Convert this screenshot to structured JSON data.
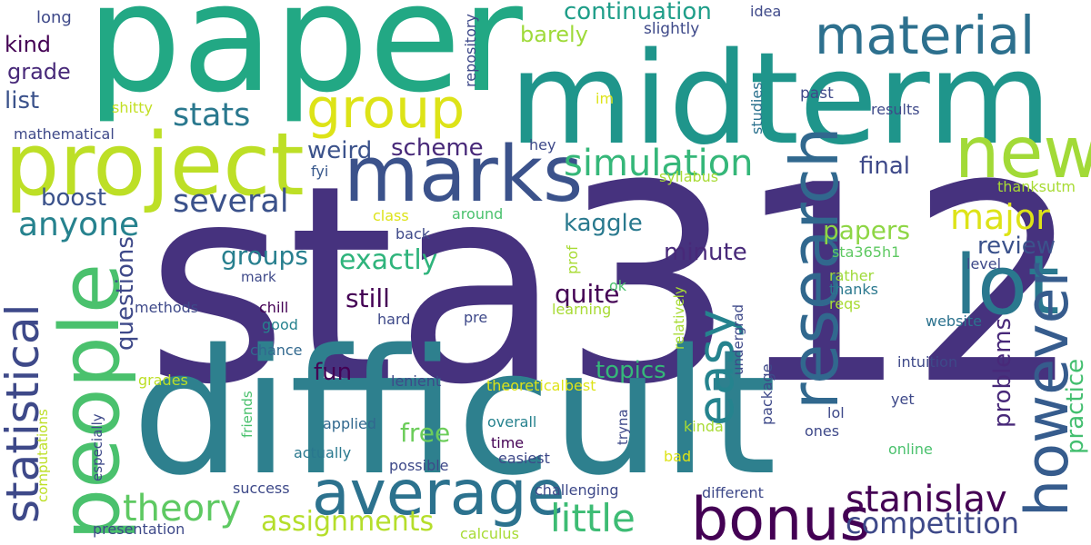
{
  "words": [
    {
      "text": "sta312",
      "color": "#46327e"
    },
    {
      "text": "difficult",
      "color": "#2e808e"
    },
    {
      "text": "paper",
      "color": "#22a884"
    },
    {
      "text": "midterm",
      "color": "#1f958b"
    },
    {
      "text": "project",
      "color": "#bddf26"
    },
    {
      "text": "people",
      "color": "#4ac16d"
    },
    {
      "text": "marks",
      "color": "#3b528b"
    },
    {
      "text": "lot",
      "color": "#2a788e"
    },
    {
      "text": "new",
      "color": "#a2da37"
    },
    {
      "text": "research",
      "color": "#31688e"
    },
    {
      "text": "average",
      "color": "#2c728e"
    },
    {
      "text": "bonus",
      "color": "#440154"
    },
    {
      "text": "however",
      "color": "#365c8d"
    },
    {
      "text": "material",
      "color": "#2d708e"
    },
    {
      "text": "group",
      "color": "#dde318"
    },
    {
      "text": "easy",
      "color": "#25838e"
    },
    {
      "text": "statistical",
      "color": "#3e4989"
    },
    {
      "text": "simulation",
      "color": "#35b779"
    },
    {
      "text": "stanislav",
      "color": "#440154"
    },
    {
      "text": "little",
      "color": "#3dbc74"
    },
    {
      "text": "theory",
      "color": "#5ec962"
    },
    {
      "text": "major",
      "color": "#dde318"
    },
    {
      "text": "several",
      "color": "#3b528b"
    },
    {
      "text": "anyone",
      "color": "#26828e"
    },
    {
      "text": "stats",
      "color": "#2a788e"
    },
    {
      "text": "competition",
      "color": "#3e4989"
    },
    {
      "text": "assignments",
      "color": "#b5de2b"
    },
    {
      "text": "exactly",
      "color": "#2fb47c"
    },
    {
      "text": "continuation",
      "color": "#1f9e89"
    },
    {
      "text": "papers",
      "color": "#8ed645"
    },
    {
      "text": "review",
      "color": "#3b528b"
    },
    {
      "text": "practice",
      "color": "#44bf70"
    },
    {
      "text": "problems",
      "color": "#482979"
    },
    {
      "text": "groups",
      "color": "#277f8e"
    },
    {
      "text": "free",
      "color": "#6ccd5a"
    },
    {
      "text": "quite",
      "color": "#440154"
    },
    {
      "text": "still",
      "color": "#440154"
    },
    {
      "text": "questions",
      "color": "#3e4989"
    },
    {
      "text": "minute",
      "color": "#482979"
    },
    {
      "text": "kaggle",
      "color": "#29798e"
    },
    {
      "text": "topics",
      "color": "#35b779"
    },
    {
      "text": "fun",
      "color": "#440154"
    },
    {
      "text": "scheme",
      "color": "#482979"
    },
    {
      "text": "weird",
      "color": "#3b528b"
    },
    {
      "text": "final",
      "color": "#3e4989"
    },
    {
      "text": "boost",
      "color": "#3b528b"
    },
    {
      "text": "kind",
      "color": "#440154"
    },
    {
      "text": "grade",
      "color": "#482979"
    },
    {
      "text": "list",
      "color": "#3b528b"
    },
    {
      "text": "barely",
      "color": "#9fda3a"
    },
    {
      "text": "long",
      "color": "#3e4989"
    },
    {
      "text": "mathematical",
      "color": "#3e4989"
    },
    {
      "text": "shitty",
      "color": "#c2df23"
    },
    {
      "text": "repository",
      "color": "#3e4989"
    },
    {
      "text": "im",
      "color": "#dde318"
    },
    {
      "text": "idea",
      "color": "#3e4989"
    },
    {
      "text": "slightly",
      "color": "#3e4989"
    },
    {
      "text": "studies",
      "color": "#2c728e"
    },
    {
      "text": "past",
      "color": "#3e4989"
    },
    {
      "text": "results",
      "color": "#3e4989"
    },
    {
      "text": "hey",
      "color": "#3e4989"
    },
    {
      "text": "fyi",
      "color": "#38588c"
    },
    {
      "text": "syllabus",
      "color": "#a8db34"
    },
    {
      "text": "thanksutm",
      "color": "#a8db34"
    },
    {
      "text": "class",
      "color": "#dde318"
    },
    {
      "text": "around",
      "color": "#4ac16d"
    },
    {
      "text": "back",
      "color": "#3e4989"
    },
    {
      "text": "sta365h1",
      "color": "#5ec962"
    },
    {
      "text": "prof",
      "color": "#a8db34"
    },
    {
      "text": "level",
      "color": "#3e4989"
    },
    {
      "text": "rather",
      "color": "#9fda3a"
    },
    {
      "text": "thanks",
      "color": "#2a788e"
    },
    {
      "text": "reqs",
      "color": "#a8db34"
    },
    {
      "text": "mark",
      "color": "#3e4989"
    },
    {
      "text": "chill",
      "color": "#440154"
    },
    {
      "text": "methods",
      "color": "#3e4989"
    },
    {
      "text": "good",
      "color": "#26828e"
    },
    {
      "text": "hard",
      "color": "#3e4989"
    },
    {
      "text": "pre",
      "color": "#3e4989"
    },
    {
      "text": "ok",
      "color": "#4ac16d"
    },
    {
      "text": "learning",
      "color": "#a8db34"
    },
    {
      "text": "relatively",
      "color": "#a8db34"
    },
    {
      "text": "website",
      "color": "#2c728e"
    },
    {
      "text": "chance",
      "color": "#31688e"
    },
    {
      "text": "undergrad",
      "color": "#3e4989"
    },
    {
      "text": "intuition",
      "color": "#3e4989"
    },
    {
      "text": "grades",
      "color": "#bddf26"
    },
    {
      "text": "lenient",
      "color": "#3e4989"
    },
    {
      "text": "package",
      "color": "#3e4989"
    },
    {
      "text": "friends",
      "color": "#4ac16d"
    },
    {
      "text": "theoreticalbest",
      "color": "#dde318"
    },
    {
      "text": "yet",
      "color": "#3e4989"
    },
    {
      "text": "lol",
      "color": "#3e4989"
    },
    {
      "text": "tryna",
      "color": "#3e4989"
    },
    {
      "text": "applied",
      "color": "#31688e"
    },
    {
      "text": "especially",
      "color": "#3e4989"
    },
    {
      "text": "computations",
      "color": "#bddf26"
    },
    {
      "text": "overall",
      "color": "#26828e"
    },
    {
      "text": "kinda",
      "color": "#a8db34"
    },
    {
      "text": "ones",
      "color": "#3e4989"
    },
    {
      "text": "time",
      "color": "#440154"
    },
    {
      "text": "actually",
      "color": "#2a788e"
    },
    {
      "text": "easiest",
      "color": "#3e4989"
    },
    {
      "text": "bad",
      "color": "#dde318"
    },
    {
      "text": "online",
      "color": "#4ac16d"
    },
    {
      "text": "possible",
      "color": "#3e4989"
    },
    {
      "text": "success",
      "color": "#3e4989"
    },
    {
      "text": "challenging",
      "color": "#3e4989"
    },
    {
      "text": "different",
      "color": "#3e4989"
    },
    {
      "text": "presentation",
      "color": "#3e4989"
    },
    {
      "text": "calculus",
      "color": "#a8db34"
    }
  ]
}
